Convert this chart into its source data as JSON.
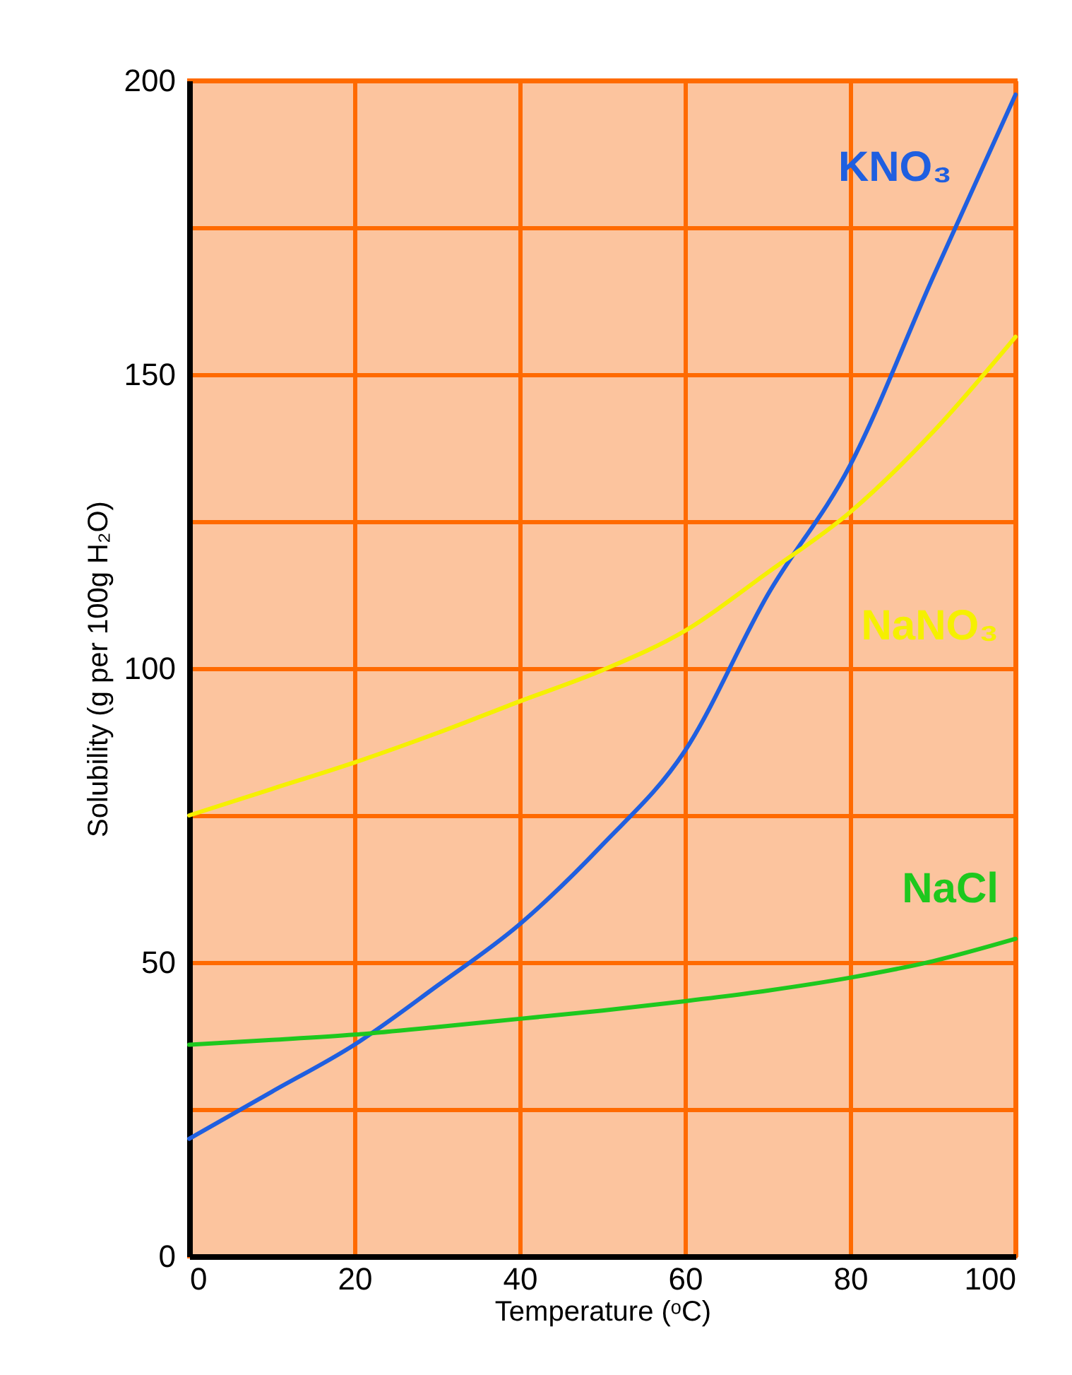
{
  "chart_data": {
    "type": "line",
    "xlabel": "Temperature (ᵒC)",
    "ylabel": "Solubility (g per 100g H₂O)",
    "x": [
      0,
      10,
      20,
      30,
      40,
      50,
      60,
      70,
      80,
      90,
      100
    ],
    "series": [
      {
        "name": "KNO₃",
        "color": "#1f5fe0",
        "values": [
          20,
          28,
          36,
          46,
          56.5,
          70,
          86,
          112.5,
          134.6,
          166.5,
          197.6
        ]
      },
      {
        "name": "NaNO₃",
        "color": "#f5f000",
        "values": [
          75,
          79.5,
          84,
          89,
          94.4,
          99.7,
          106.4,
          116.3,
          126.6,
          140.2,
          156.4
        ]
      },
      {
        "name": "NaCl",
        "color": "#1ec81e",
        "values": [
          36,
          36.8,
          37.7,
          39,
          40.4,
          41.8,
          43.4,
          45.2,
          47.4,
          50.2,
          54
        ]
      }
    ],
    "xlim": [
      0,
      100
    ],
    "xticks": [
      0,
      20,
      40,
      60,
      80,
      100
    ],
    "ylim": [
      0,
      200
    ],
    "yticks": [
      0,
      {
        "value": 25,
        "label": null
      },
      50,
      {
        "value": 75,
        "label": null
      },
      100,
      {
        "value": 125,
        "label": null
      },
      150,
      {
        "value": 175,
        "label": null
      },
      200
    ],
    "grid": true,
    "legend": false,
    "marker": "none",
    "line_style": "solid"
  }
}
